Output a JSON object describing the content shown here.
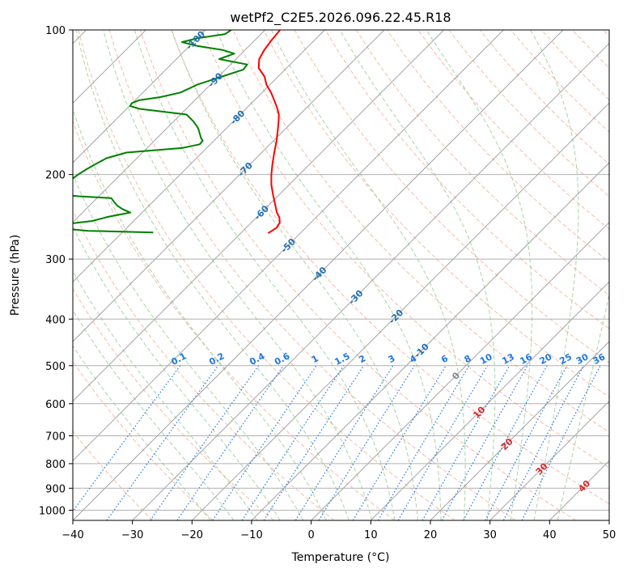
{
  "chart_data": {
    "type": "line",
    "title": "wetPf2_C2E5.2026.096.22.45.R18",
    "xlabel": "Temperature (°C)",
    "ylabel": "Pressure (hPa)",
    "xlim": [
      -40,
      50
    ],
    "ylim": [
      1050,
      100
    ],
    "y_scale": "log",
    "skew": true,
    "grid": true,
    "x_ticks": [
      -40,
      -30,
      -20,
      -10,
      0,
      10,
      20,
      30,
      40,
      50
    ],
    "y_ticks": [
      100,
      200,
      300,
      400,
      500,
      600,
      700,
      800,
      900,
      1000
    ],
    "colors": {
      "temperature": "#ff0000",
      "dewpoint": "#008000",
      "isotherm": "#999999",
      "dry_adiabat": "#f7a98e",
      "moist_adiabat": "#8fcb8f",
      "mixing_ratio": "#1f77e0",
      "isotherm_label_cold": "#1f6fb4",
      "isotherm_label_warm": "#d62728",
      "isotherm_label_zero": "#888888"
    },
    "series": [
      {
        "key": "temperature",
        "color": "#ff0000",
        "pressure": [
          265,
          258,
          252,
          246,
          240,
          230,
          220,
          210,
          200,
          190,
          180,
          170,
          160,
          155,
          150,
          145,
          140,
          135,
          130,
          125,
          120,
          115,
          110,
          105,
          100
        ],
        "temperature": [
          -55.4,
          -54.9,
          -55.2,
          -56.1,
          -57.4,
          -59.2,
          -61.1,
          -63.0,
          -64.7,
          -66.3,
          -67.9,
          -69.5,
          -71.4,
          -72.4,
          -73.5,
          -75.0,
          -76.7,
          -78.5,
          -80.6,
          -82.3,
          -84.7,
          -86.1,
          -86.8,
          -87.2,
          -87.5
        ]
      },
      {
        "key": "dewpoint",
        "color": "#008000",
        "pressure": [
          264,
          262,
          258,
          255,
          250,
          245,
          240,
          236,
          232,
          228,
          224,
          222,
          220,
          215,
          210,
          205,
          200,
          195,
          190,
          185,
          180,
          176,
          173,
          170,
          168,
          165,
          160,
          155,
          150,
          146,
          144,
          142,
          140,
          138,
          135,
          130,
          125,
          121,
          118,
          115,
          112,
          110,
          108,
          106,
          104,
          102,
          100
        ],
        "temperature": [
          -74.8,
          -86.0,
          -92.3,
          -92.2,
          -87.0,
          -85.0,
          -82.0,
          -83.9,
          -85.4,
          -86.5,
          -87.6,
          -93.4,
          -97.2,
          -97.6,
          -97.7,
          -97.4,
          -97.1,
          -96.6,
          -95.9,
          -95.1,
          -92.7,
          -84.0,
          -81.8,
          -81.9,
          -82.6,
          -83.4,
          -84.8,
          -86.7,
          -89.0,
          -97.8,
          -99.9,
          -100.1,
          -99.3,
          -96.3,
          -93.7,
          -92.2,
          -89.4,
          -87.0,
          -87.2,
          -92.8,
          -91.2,
          -93.9,
          -98.7,
          -101.9,
          -99.9,
          -96.0,
          -95.7
        ]
      }
    ],
    "isotherm_labels": [
      "-100",
      "-90",
      "-80",
      "-70",
      "-60",
      "-50",
      "-40",
      "-30",
      "-20",
      "-10",
      "0",
      "10",
      "20",
      "30",
      "40"
    ],
    "mixing_ratio_labels": [
      "0.1",
      "0.2",
      "0.4",
      "0.6",
      "1",
      "1.5",
      "2",
      "3",
      "4",
      "6",
      "8",
      "10",
      "13",
      "16",
      "20",
      "25",
      "30",
      "36"
    ],
    "mixing_ratio_values": [
      0.1,
      0.2,
      0.4,
      0.6,
      1,
      1.5,
      2,
      3,
      4,
      6,
      8,
      10,
      13,
      16,
      20,
      25,
      30,
      36
    ],
    "mixing_ratio_top_hpa": 500
  }
}
